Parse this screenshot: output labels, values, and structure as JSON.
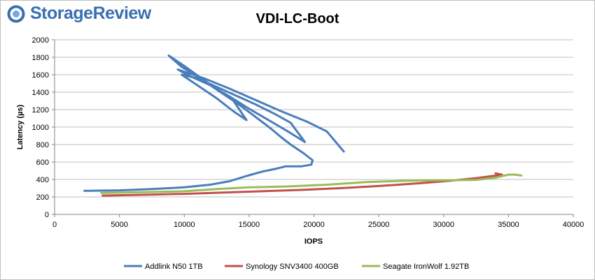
{
  "logo": {
    "text": "StorageReview",
    "icon": "storagereview-globe-icon"
  },
  "chart_data": {
    "type": "line",
    "title": "VDI-LC-Boot",
    "xlabel": "IOPS",
    "ylabel": "Latency (µs)",
    "xlim": [
      0,
      40000
    ],
    "ylim": [
      0,
      2000
    ],
    "xticks": [
      0,
      5000,
      10000,
      15000,
      20000,
      25000,
      30000,
      35000,
      40000
    ],
    "yticks": [
      0,
      200,
      400,
      600,
      800,
      1000,
      1200,
      1400,
      1600,
      1800,
      2000
    ],
    "grid": "horizontal",
    "legend": "bottom",
    "series": [
      {
        "name": "Addlink N50 1TB",
        "color": "#4a7ebb",
        "points": [
          [
            2300,
            270
          ],
          [
            5000,
            275
          ],
          [
            7500,
            290
          ],
          [
            10000,
            310
          ],
          [
            12000,
            340
          ],
          [
            13500,
            380
          ],
          [
            14800,
            440
          ],
          [
            16000,
            490
          ],
          [
            17000,
            520
          ],
          [
            17800,
            550
          ],
          [
            19000,
            550
          ],
          [
            19800,
            570
          ],
          [
            19900,
            620
          ],
          [
            19200,
            700
          ],
          [
            18200,
            800
          ],
          [
            17500,
            880
          ],
          [
            16700,
            980
          ],
          [
            16000,
            1060
          ],
          [
            15200,
            1150
          ],
          [
            14200,
            1260
          ],
          [
            13200,
            1360
          ],
          [
            12000,
            1480
          ],
          [
            10800,
            1600
          ],
          [
            9800,
            1690
          ],
          [
            8800,
            1820
          ],
          [
            10000,
            1700
          ],
          [
            11500,
            1540
          ],
          [
            12800,
            1410
          ],
          [
            13800,
            1300
          ],
          [
            14800,
            1080
          ],
          [
            13800,
            1180
          ],
          [
            12500,
            1330
          ],
          [
            11000,
            1480
          ],
          [
            9800,
            1600
          ],
          [
            11000,
            1560
          ],
          [
            12500,
            1460
          ],
          [
            14000,
            1360
          ],
          [
            15500,
            1260
          ],
          [
            17000,
            1150
          ],
          [
            18200,
            1050
          ],
          [
            19300,
            830
          ],
          [
            18000,
            950
          ],
          [
            16500,
            1080
          ],
          [
            15000,
            1210
          ],
          [
            13500,
            1350
          ],
          [
            12000,
            1480
          ],
          [
            10500,
            1580
          ],
          [
            9500,
            1660
          ],
          [
            11500,
            1560
          ],
          [
            13500,
            1440
          ],
          [
            15500,
            1310
          ],
          [
            17500,
            1180
          ],
          [
            19500,
            1060
          ],
          [
            21000,
            950
          ],
          [
            22300,
            720
          ]
        ]
      },
      {
        "name": "Synology SNV3400 400GB",
        "color": "#c0504d",
        "points": [
          [
            3700,
            215
          ],
          [
            7000,
            225
          ],
          [
            10000,
            235
          ],
          [
            13000,
            250
          ],
          [
            16000,
            265
          ],
          [
            19000,
            280
          ],
          [
            22000,
            300
          ],
          [
            25000,
            325
          ],
          [
            28000,
            355
          ],
          [
            30500,
            385
          ],
          [
            32500,
            415
          ],
          [
            33800,
            440
          ],
          [
            34500,
            455
          ],
          [
            34000,
            470
          ],
          [
            34200,
            465
          ]
        ]
      },
      {
        "name": "Seagate IronWolf 1.92TB",
        "color": "#9bbb59",
        "points": [
          [
            3600,
            245
          ],
          [
            7000,
            255
          ],
          [
            10000,
            265
          ],
          [
            12500,
            290
          ],
          [
            15000,
            310
          ],
          [
            18000,
            320
          ],
          [
            21000,
            340
          ],
          [
            24000,
            370
          ],
          [
            27000,
            385
          ],
          [
            30000,
            390
          ],
          [
            32500,
            395
          ],
          [
            34000,
            420
          ],
          [
            35000,
            455
          ],
          [
            35500,
            455
          ],
          [
            36000,
            445
          ]
        ]
      }
    ]
  }
}
